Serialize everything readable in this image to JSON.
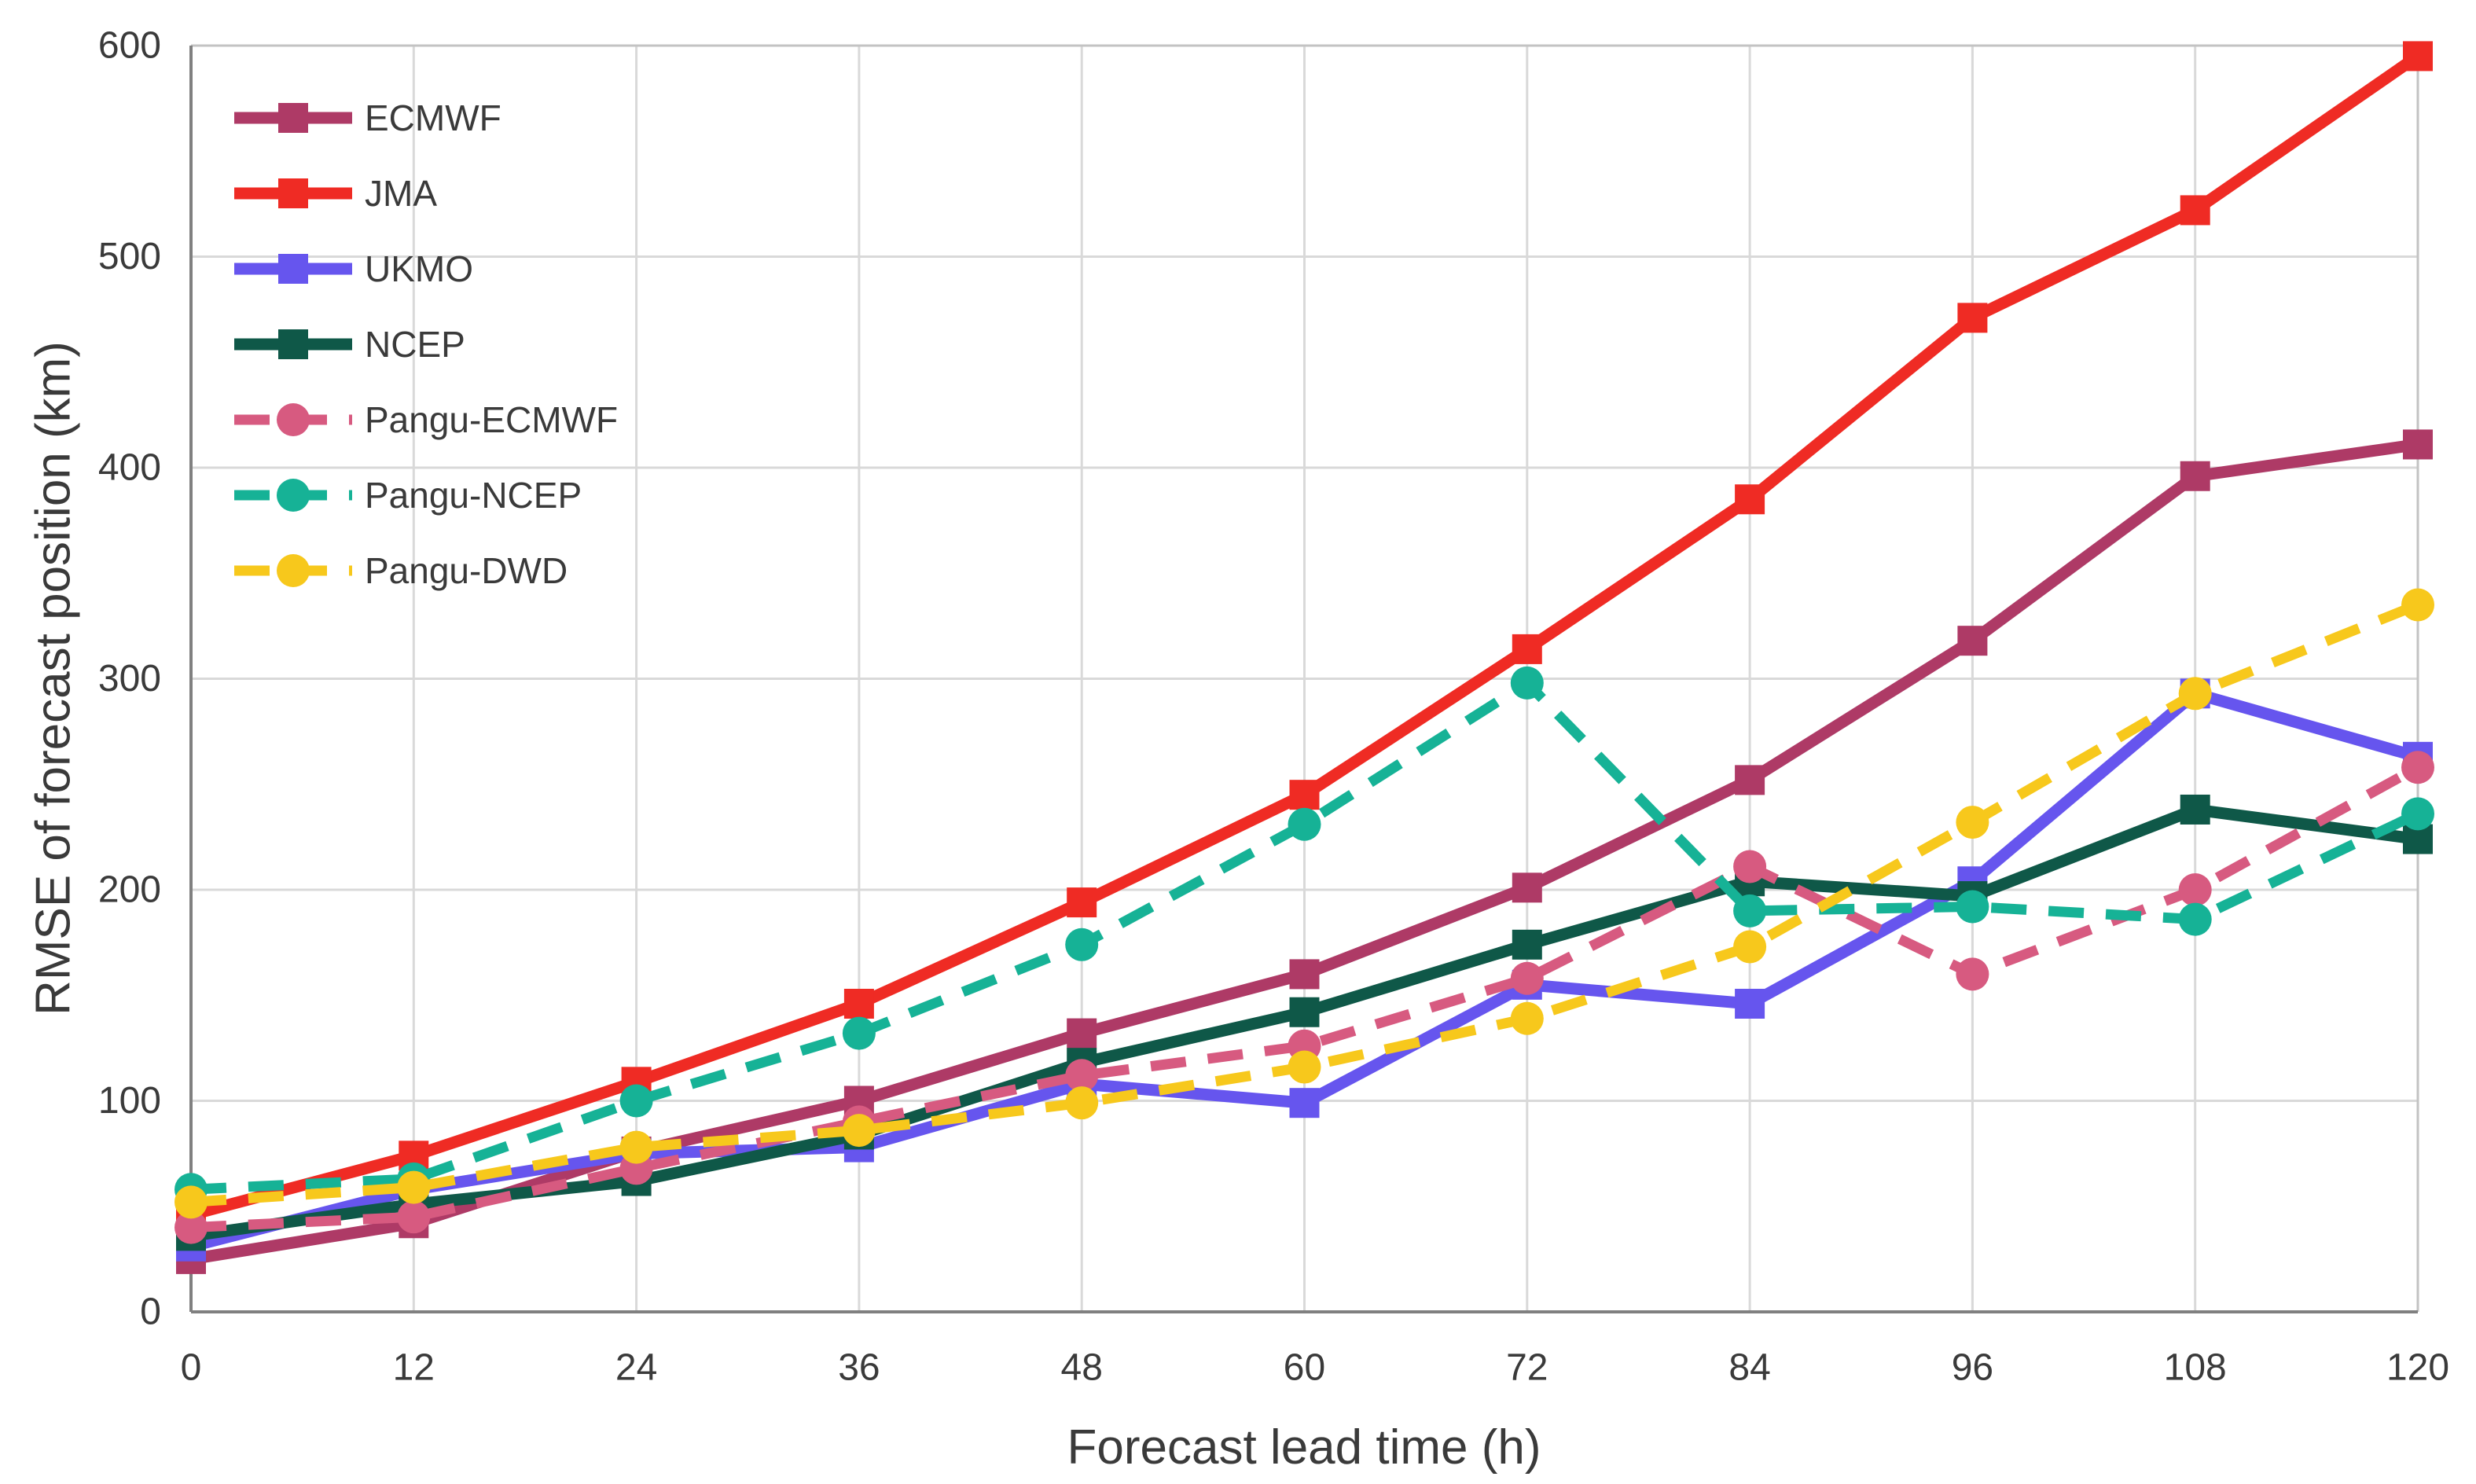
{
  "chart_data": {
    "type": "line",
    "title": "",
    "xlabel": "Forecast lead time (h)",
    "ylabel": "RMSE of forecast position (km)",
    "x": [
      0,
      12,
      24,
      36,
      48,
      60,
      72,
      84,
      96,
      108,
      120
    ],
    "xlim": [
      0,
      120
    ],
    "ylim": [
      0,
      600
    ],
    "x_ticks": [
      0,
      12,
      24,
      36,
      48,
      60,
      72,
      84,
      96,
      108,
      120
    ],
    "y_ticks": [
      0,
      100,
      200,
      300,
      400,
      500,
      600
    ],
    "grid": true,
    "legend_position": "upper-left-inside",
    "series": [
      {
        "name": "ECMWF",
        "color": "#ae3a66",
        "style": "solid",
        "marker": "square",
        "values": [
          25,
          42,
          76,
          100,
          132,
          160,
          201,
          252,
          318,
          396,
          411
        ]
      },
      {
        "name": "JMA",
        "color": "#ef2b24",
        "style": "solid",
        "marker": "square",
        "values": [
          46,
          74,
          109,
          146,
          194,
          245,
          314,
          385,
          471,
          522,
          595
        ]
      },
      {
        "name": "UKMO",
        "color": "#6655ee",
        "style": "solid",
        "marker": "square",
        "values": [
          31,
          58,
          75,
          78,
          108,
          99,
          155,
          146,
          204,
          293,
          263
        ]
      },
      {
        "name": "NCEP",
        "color": "#0f5848",
        "style": "solid",
        "marker": "square",
        "values": [
          36,
          51,
          62,
          84,
          118,
          142,
          174,
          204,
          197,
          238,
          224
        ]
      },
      {
        "name": "Pangu-ECMWF",
        "color": "#d75a80",
        "style": "dashed",
        "marker": "circle",
        "values": [
          40,
          45,
          68,
          90,
          112,
          126,
          158,
          211,
          160,
          200,
          258
        ]
      },
      {
        "name": "Pangu-NCEP",
        "color": "#16b296",
        "style": "dashed",
        "marker": "circle",
        "values": [
          58,
          63,
          100,
          132,
          174,
          231,
          298,
          190,
          192,
          186,
          236
        ]
      },
      {
        "name": "Pangu-DWD",
        "color": "#f7c81c",
        "style": "dashed",
        "marker": "circle",
        "values": [
          52,
          59,
          78,
          86,
          99,
          116,
          139,
          173,
          232,
          293,
          335
        ]
      }
    ],
    "colors": {
      "grid": "#d9d9d9",
      "border": "#c3c3c3",
      "axis": "#808080",
      "text": "#3a3a3a",
      "background": "#ffffff"
    }
  }
}
